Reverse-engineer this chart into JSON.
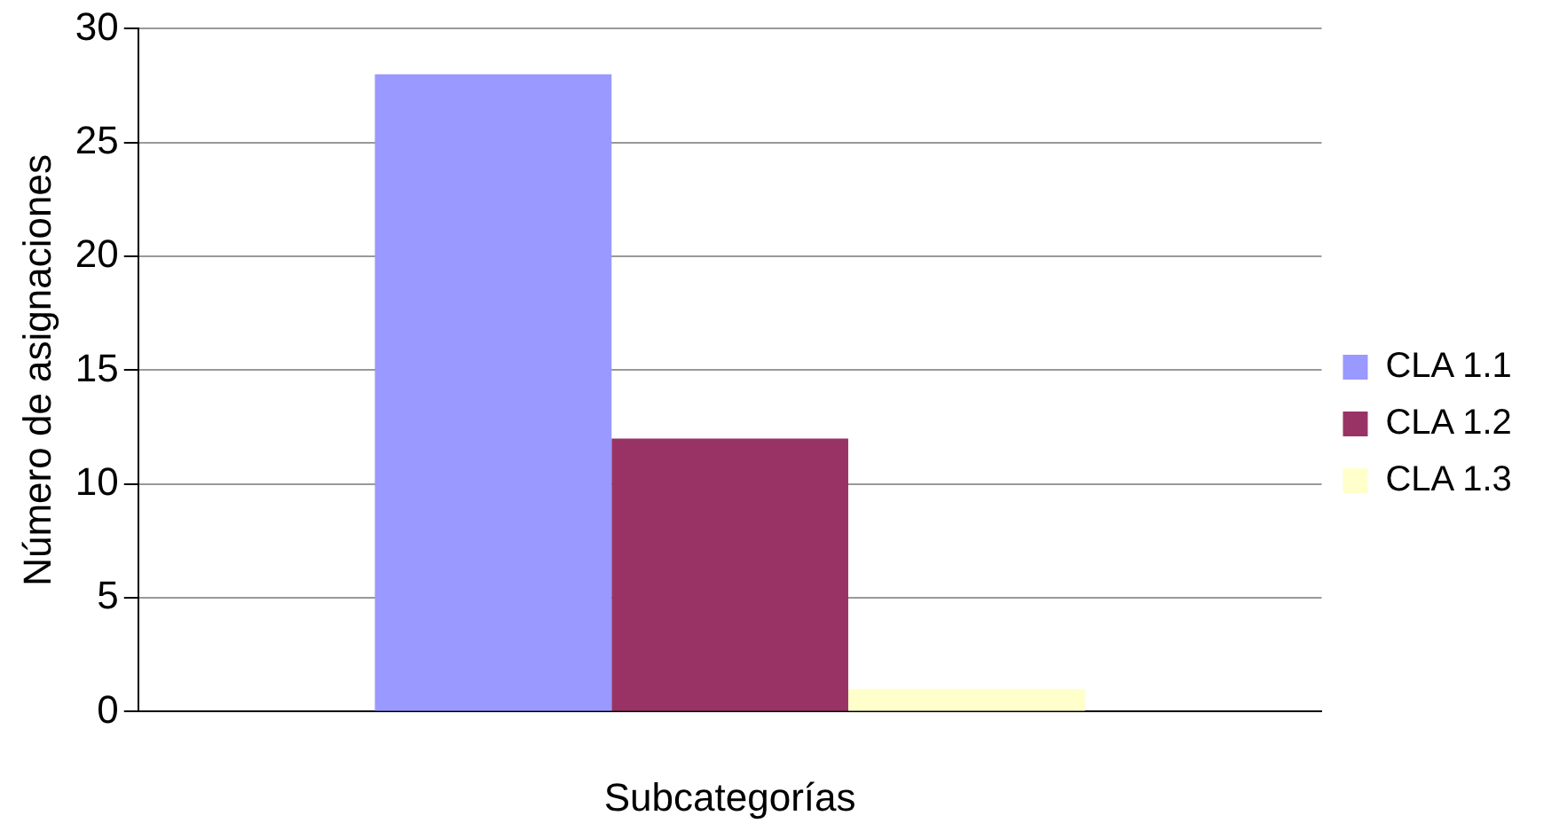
{
  "chart_data": {
    "type": "bar",
    "xlabel": "Subcategorías",
    "ylabel": "Número de asignaciones",
    "categories": [
      null
    ],
    "series": [
      {
        "name": "CLA 1.1",
        "color": "#9999ff",
        "values": [
          28
        ]
      },
      {
        "name": "CLA 1.2",
        "color": "#993366",
        "values": [
          12
        ]
      },
      {
        "name": "CLA 1.3",
        "color": "#ffffcc",
        "values": [
          1
        ]
      }
    ],
    "ylim": [
      0,
      30
    ],
    "yticks": [
      0,
      5,
      10,
      15,
      20,
      25,
      30
    ],
    "grid": "y",
    "legend": "right"
  }
}
